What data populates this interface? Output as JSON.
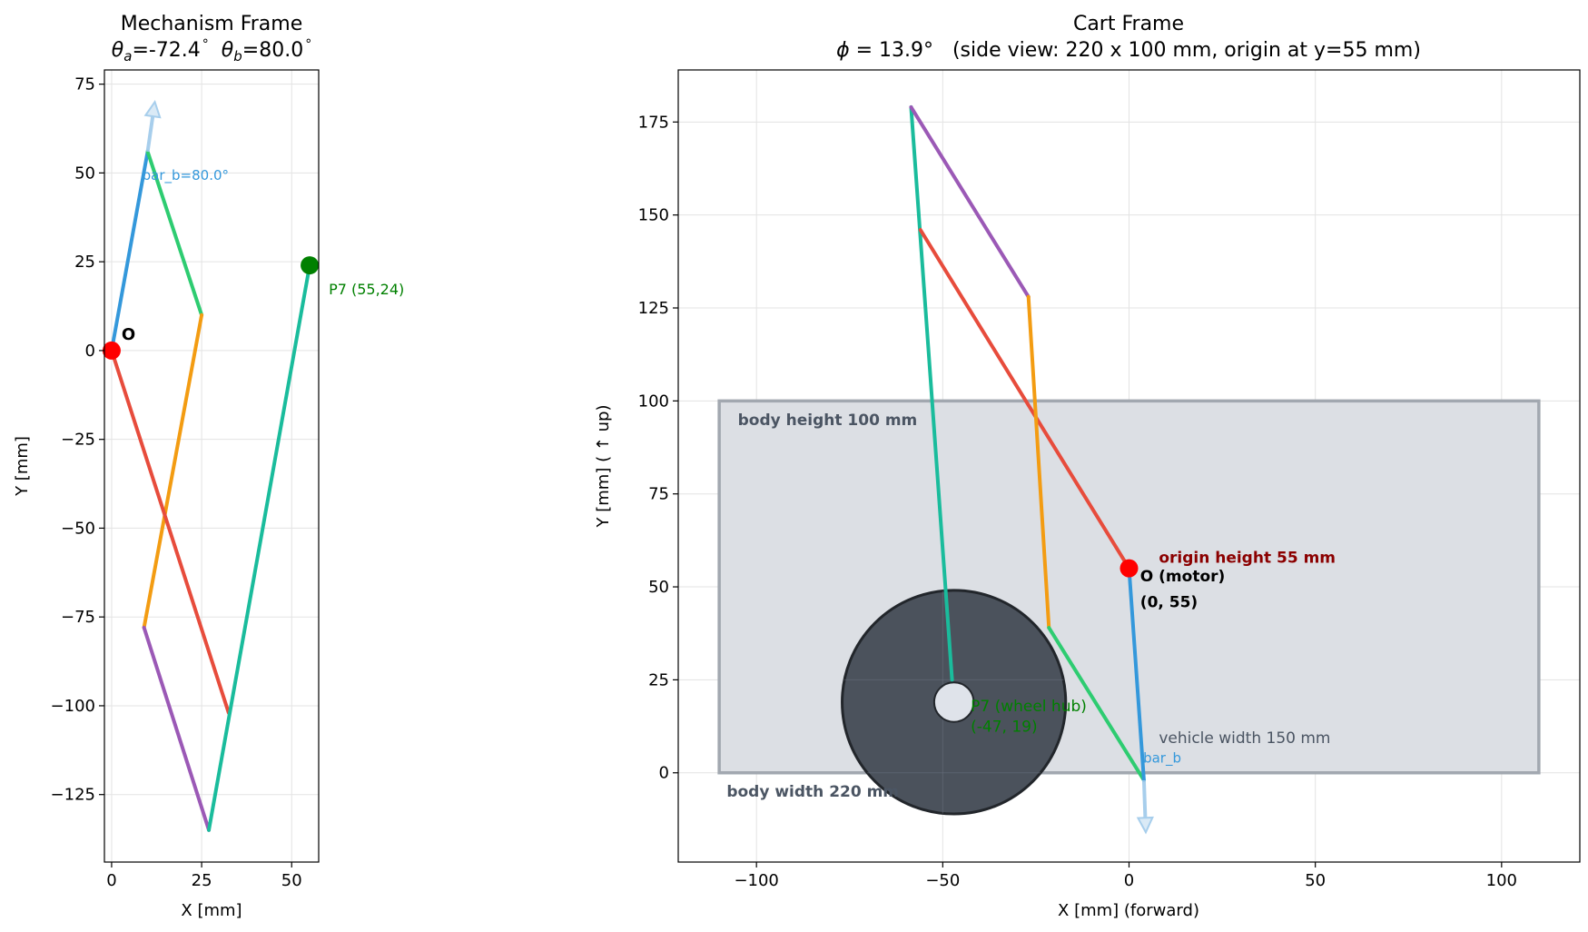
{
  "chart_data": [
    {
      "type": "line",
      "title": "Mechanism Frame",
      "subtitle_a_label": "a",
      "subtitle_a_value": "=-72.4",
      "subtitle_b_label": "b",
      "subtitle_b_value": "=80.0",
      "degree": "°",
      "xlabel": "X [mm]",
      "ylabel": "Y [mm]",
      "xlim": [
        -2,
        57.5
      ],
      "ylim": [
        -144,
        79
      ],
      "grid": true,
      "xticks": [
        0,
        25,
        50
      ],
      "yticks": [
        75,
        50,
        25,
        0,
        -25,
        -50,
        -75,
        -100,
        -125
      ],
      "tick_labels_x": [
        "0",
        "25",
        "50"
      ],
      "tick_labels_y": [
        "75",
        "50",
        "25",
        "0",
        "−25",
        "−50",
        "−75",
        "−100",
        "−125"
      ],
      "links": [
        {
          "color": "#3498db",
          "points": [
            [
              0,
              0
            ],
            [
              10,
              56
            ]
          ]
        },
        {
          "color": "#2ecc71",
          "points": [
            [
              10,
              56
            ],
            [
              25,
              10
            ]
          ]
        },
        {
          "color": "#f39c12",
          "points": [
            [
              25,
              10
            ],
            [
              9,
              -78
            ]
          ]
        },
        {
          "color": "#9b59b6",
          "points": [
            [
              9,
              -78
            ],
            [
              27,
              -135
            ]
          ]
        },
        {
          "color": "#e74c3c",
          "points": [
            [
              0,
              0
            ],
            [
              32.5,
              -102
            ]
          ]
        },
        {
          "color": "#1abc9c",
          "points": [
            [
              27,
              -135
            ],
            [
              55,
              24
            ]
          ]
        }
      ],
      "arrow": {
        "color": "#9ec9ea",
        "from": [
          10,
          56
        ],
        "to": [
          12,
          70
        ]
      },
      "points": [
        {
          "name": "O",
          "x": 0,
          "y": 0,
          "color": "#ff0000"
        },
        {
          "name": "P7",
          "x": 55,
          "y": 24,
          "color": "#008000"
        }
      ],
      "labels": {
        "origin": "O",
        "p7": "P7 (55,24)",
        "bar_b": "bar_b=80.0°"
      }
    },
    {
      "type": "line",
      "title": "Cart Frame",
      "subtitle_phi": "ϕ",
      "subtitle_rest": " = 13.9°   (side view: 220 x 100 mm, origin at y=55 mm)",
      "xlabel": "X [mm] (forward)",
      "ylabel": "Y [mm] ( ↑  up)",
      "xlim": [
        -121,
        121
      ],
      "ylim": [
        -24,
        189
      ],
      "grid": true,
      "xticks": [
        -100,
        -50,
        0,
        50,
        100
      ],
      "yticks": [
        175,
        150,
        125,
        100,
        75,
        50,
        25,
        0
      ],
      "tick_labels_x": [
        "−100",
        "−50",
        "0",
        "50",
        "100"
      ],
      "tick_labels_y": [
        "175",
        "150",
        "125",
        "100",
        "75",
        "50",
        "25",
        "0"
      ],
      "body": {
        "x0": -110,
        "x1": 110,
        "y0": 0,
        "y1": 100,
        "fill": "#dcdfe4",
        "stroke": "#a2a8b0"
      },
      "wheel": {
        "cx": -47,
        "cy": 19,
        "r": 30,
        "hub_r": 5.3,
        "fill": "#4b525c",
        "hub_fill": "#dfe3ea",
        "stroke": "#22262b"
      },
      "links": [
        {
          "color": "#1abc9c",
          "points": [
            [
              -47.5,
              25
            ],
            [
              -58.5,
              179
            ]
          ]
        },
        {
          "color": "#9b59b6",
          "points": [
            [
              -58.5,
              179
            ],
            [
              -27,
              128
            ]
          ]
        },
        {
          "color": "#e74c3c",
          "points": [
            [
              -56,
              146
            ],
            [
              0,
              55
            ]
          ]
        },
        {
          "color": "#f39c12",
          "points": [
            [
              -27,
              128
            ],
            [
              -21.5,
              39
            ]
          ]
        },
        {
          "color": "#2ecc71",
          "points": [
            [
              -21.5,
              39
            ],
            [
              4,
              -2
            ]
          ]
        },
        {
          "color": "#3498db",
          "points": [
            [
              0,
              55
            ],
            [
              4,
              -2
            ]
          ]
        }
      ],
      "arrow": {
        "color": "#9ec9ea",
        "from": [
          4,
          -2
        ],
        "to": [
          4.5,
          -16
        ]
      },
      "points": [
        {
          "name": "O (motor)",
          "x": 0,
          "y": 55,
          "color": "#ff0000"
        }
      ],
      "labels": {
        "body_height": "body height 100 mm",
        "body_width": "body width 220 mm",
        "origin_height": "origin height 55 mm",
        "origin_name": "O (motor)",
        "origin_coords": "(0, 55)",
        "p7_name": "P7 (wheel hub)",
        "p7_coords": "(-47, 19)",
        "vehicle_width": "vehicle width 150 mm",
        "bar_b": "bar_b"
      }
    }
  ]
}
